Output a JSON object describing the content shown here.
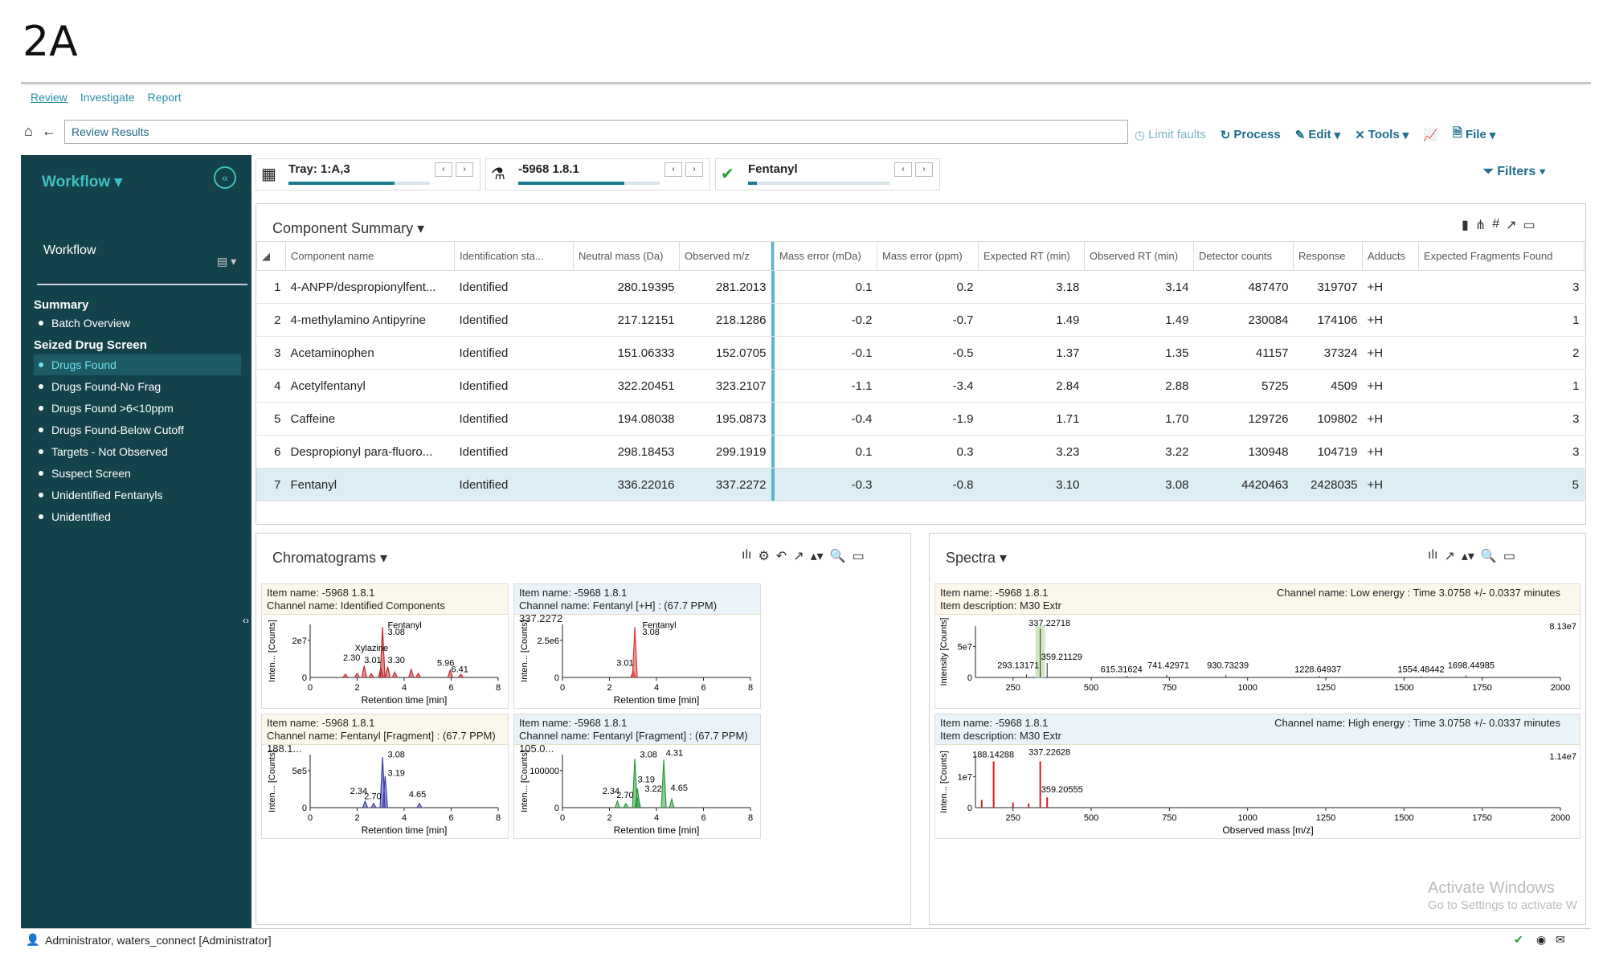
{
  "figure_label": "2A",
  "nav_tabs": [
    "Review",
    "Investigate",
    "Report"
  ],
  "address": "Review Results",
  "toolbar": {
    "limit_faults": "Limit faults",
    "process": "Process",
    "edit": "Edit",
    "tools": "Tools",
    "file": "File"
  },
  "sidebar": {
    "title": "Workflow",
    "subtitle": "Workflow",
    "groups": [
      {
        "label": "Summary",
        "items": [
          "Batch Overview"
        ]
      },
      {
        "label": "Seized Drug Screen",
        "items": [
          "Drugs Found",
          "Drugs Found-No Frag",
          "Drugs Found >6<10ppm",
          "Drugs Found-Below Cutoff",
          "Targets - Not Observed",
          "Suspect Screen",
          "Unidentified Fentanyls",
          "Unidentified"
        ]
      }
    ],
    "active_item": "Drugs Found"
  },
  "selectors": [
    {
      "label": "Tray: 1:A,3",
      "progress": 0.75
    },
    {
      "label": "-5968 1.8.1",
      "progress": 0.75
    },
    {
      "label": "Fentanyl",
      "progress": 0.06
    }
  ],
  "filters_label": "Filters",
  "component_summary": {
    "title": "Component Summary",
    "columns": [
      "",
      "Component name",
      "Identification sta...",
      "Neutral mass (Da)",
      "Observed m/z",
      "Mass error (mDa)",
      "Mass error (ppm)",
      "Expected RT (min)",
      "Observed RT (min)",
      "Detector counts",
      "Response",
      "Adducts",
      "Expected Fragments Found"
    ],
    "rows": [
      [
        "1",
        "4-ANPP/despropionylfent...",
        "Identified",
        "280.19395",
        "281.2013",
        "0.1",
        "0.2",
        "3.18",
        "3.14",
        "487470",
        "319707",
        "+H",
        "3"
      ],
      [
        "2",
        "4-methylamino Antipyrine",
        "Identified",
        "217.12151",
        "218.1286",
        "-0.2",
        "-0.7",
        "1.49",
        "1.49",
        "230084",
        "174106",
        "+H",
        "1"
      ],
      [
        "3",
        "Acetaminophen",
        "Identified",
        "151.06333",
        "152.0705",
        "-0.1",
        "-0.5",
        "1.37",
        "1.35",
        "41157",
        "37324",
        "+H",
        "2"
      ],
      [
        "4",
        "Acetylfentanyl",
        "Identified",
        "322.20451",
        "323.2107",
        "-1.1",
        "-3.4",
        "2.84",
        "2.88",
        "5725",
        "4509",
        "+H",
        "1"
      ],
      [
        "5",
        "Caffeine",
        "Identified",
        "194.08038",
        "195.0873",
        "-0.4",
        "-1.9",
        "1.71",
        "1.70",
        "129726",
        "109802",
        "+H",
        "3"
      ],
      [
        "6",
        "Despropionyl para-fluoro...",
        "Identified",
        "298.18453",
        "299.1919",
        "0.1",
        "0.3",
        "3.23",
        "3.22",
        "130948",
        "104719",
        "+H",
        "3"
      ],
      [
        "7",
        "Fentanyl",
        "Identified",
        "336.22016",
        "337.2272",
        "-0.3",
        "-0.8",
        "3.10",
        "3.08",
        "4420463",
        "2428035",
        "+H",
        "5"
      ]
    ],
    "selected_row": 6
  },
  "chromatograms": {
    "title": "Chromatograms",
    "xlabel": "Retention time [min]",
    "ylabel": "Inten... [Counts]",
    "subs": [
      {
        "line1": "Item name: -5968 1.8.1",
        "line2": "Channel name: Identified Components",
        "color": "#c0282e",
        "ytick": "2e7",
        "labels": [
          "Fentanyl",
          "3.08",
          "Xylazine",
          "2.30",
          "3.01",
          "3.30",
          "5.96",
          "6.41"
        ]
      },
      {
        "line1": "Item name: -5968 1.8.1",
        "line2": "Channel name: Fentanyl [+H] : (67.7 PPM) 337.2272",
        "color": "#d83a3a",
        "ytick": "2.5e6",
        "labels": [
          "Fentanyl",
          "3.08",
          "3.01"
        ]
      },
      {
        "line1": "Item name: -5968 1.8.1",
        "line2": "Channel name: Fentanyl [Fragment] : (67.7 PPM) 188.1...",
        "color": "#3a3aa8",
        "ytick": "5e5",
        "labels": [
          "3.08",
          "3.19",
          "2.34",
          "2.70",
          "4.65"
        ]
      },
      {
        "line1": "Item name: -5968 1.8.1",
        "line2": "Channel name: Fentanyl [Fragment] : (67.7 PPM) 105.0...",
        "color": "#2a9a3a",
        "ytick": "100000",
        "labels": [
          "3.08",
          "4.31",
          "3.19",
          "3.22",
          "2.34",
          "2.70",
          "4.65"
        ]
      }
    ],
    "xticks": [
      "0",
      "2",
      "4",
      "6",
      "8"
    ]
  },
  "spectra": {
    "title": "Spectra",
    "xlabel": "Observed mass [m/z]",
    "xticks": [
      "250",
      "500",
      "750",
      "1000",
      "1250",
      "1500",
      "1750",
      "2000"
    ],
    "subs": [
      {
        "line1": "Item name: -5968 1.8.1",
        "line2": "Item description: M30 Extr",
        "channel": "Channel name: Low energy : Time 3.0758 +/- 0.0337 minutes",
        "ylabel": "Intensity [Counts]",
        "ytick": "5e7",
        "max": "8.13e7",
        "labels": [
          "337.22718",
          "359.21129",
          "293.13171",
          "615.31624",
          "741.42971",
          "930.73239",
          "1228.64937",
          "1554.48442",
          "1698.44985"
        ]
      },
      {
        "line1": "Item name: -5968 1.8.1",
        "line2": "Item description: M30 Extr",
        "channel": "Channel name: High energy : Time 3.0758 +/- 0.0337 minutes",
        "ylabel": "Inten... [Counts]",
        "ytick": "1e7",
        "max": "1.14e7",
        "labels": [
          "188.14288",
          "337.22628",
          "359.20555"
        ]
      }
    ]
  },
  "status_user": "Administrator, waters_connect [Administrator]",
  "watermark": {
    "line1": "Activate Windows",
    "line2": "Go to Settings to activate W"
  }
}
